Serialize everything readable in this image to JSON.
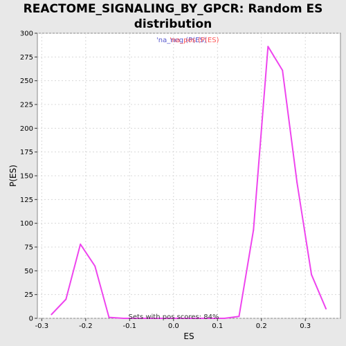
{
  "chart_data": {
    "type": "line",
    "title_line1": "REACTOME_SIGNALING_BY_GPCR: Random ES",
    "title_line2": "distribution",
    "xlabel": "ES",
    "ylabel": "P(ES)",
    "xlim": [
      -0.31,
      0.38
    ],
    "ylim": [
      0,
      300
    ],
    "xticks": [
      -0.3,
      -0.2,
      -0.1,
      0.0,
      0.1,
      0.2,
      0.3
    ],
    "xtick_labels": [
      "-0.3",
      "-0.2",
      "-0.1",
      "0.0",
      "0.1",
      "0.2",
      "0.3"
    ],
    "yticks": [
      0,
      25,
      50,
      75,
      100,
      125,
      150,
      175,
      200,
      225,
      250,
      275,
      300
    ],
    "ytick_labels": [
      "0",
      "25",
      "50",
      "75",
      "100",
      "125",
      "150",
      "175",
      "200",
      "225",
      "250",
      "275",
      "300"
    ],
    "grid": true,
    "legend": {
      "placement": "top-center",
      "entries": [
        {
          "text": "'na_neg (P(ES)",
          "color": "#5555cc"
        },
        {
          "text": "'na_pos (P(ES)",
          "color": "#ff5555"
        }
      ]
    },
    "annotation": "Sets with pos scores: 84%",
    "series": [
      {
        "name": "P(ES)",
        "color": "#ee44ee",
        "x": [
          -0.278,
          -0.245,
          -0.212,
          -0.179,
          -0.147,
          -0.114,
          -0.081,
          -0.048,
          -0.015,
          0.018,
          0.051,
          0.084,
          0.116,
          0.149,
          0.182,
          0.215,
          0.248,
          0.281,
          0.314,
          0.347
        ],
        "y": [
          4,
          20,
          78,
          55,
          1,
          0,
          0,
          0,
          0,
          0,
          0,
          0,
          0,
          2,
          93,
          286,
          261,
          143,
          46,
          10
        ]
      }
    ]
  }
}
